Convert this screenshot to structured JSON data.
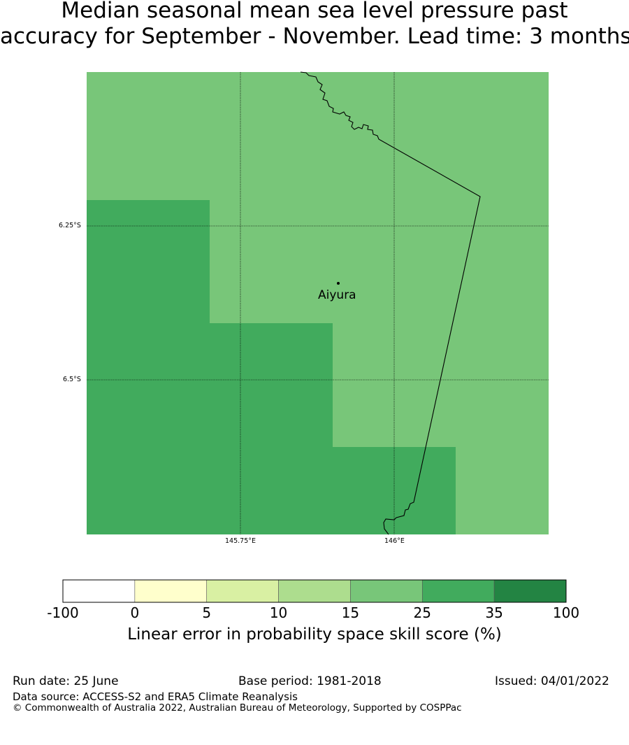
{
  "title": {
    "line1": "Median seasonal mean sea level pressure past",
    "line2": "accuracy for September - November. Lead time: 3 months"
  },
  "map": {
    "place": "Aiyura",
    "lat_labels": [
      "6.25°S",
      "6.5°S"
    ],
    "lon_labels": [
      "145.75°E",
      "146°E"
    ],
    "colors": {
      "skill_15_25": "#78c679",
      "skill_25_35": "#41ab5d"
    }
  },
  "legend": {
    "title": "Linear error in probability space skill score (%)",
    "ticks": [
      "-100",
      "0",
      "5",
      "10",
      "15",
      "25",
      "35",
      "100"
    ],
    "colors": [
      "#ffffff",
      "#ffffcc",
      "#d9f0a3",
      "#addd8e",
      "#78c679",
      "#41ab5d",
      "#238443"
    ]
  },
  "footer": {
    "run_date": "Run date: 25 June",
    "base_period": "Base period: 1981-2018",
    "issued": "Issued: 04/01/2022",
    "data_source": "Data source: ACCESS-S2 and ERA5 Climate Reanalysis",
    "copyright": "© Commonwealth of Australia 2022, Australian Bureau of Meteorology, Supported by COSPPac"
  }
}
